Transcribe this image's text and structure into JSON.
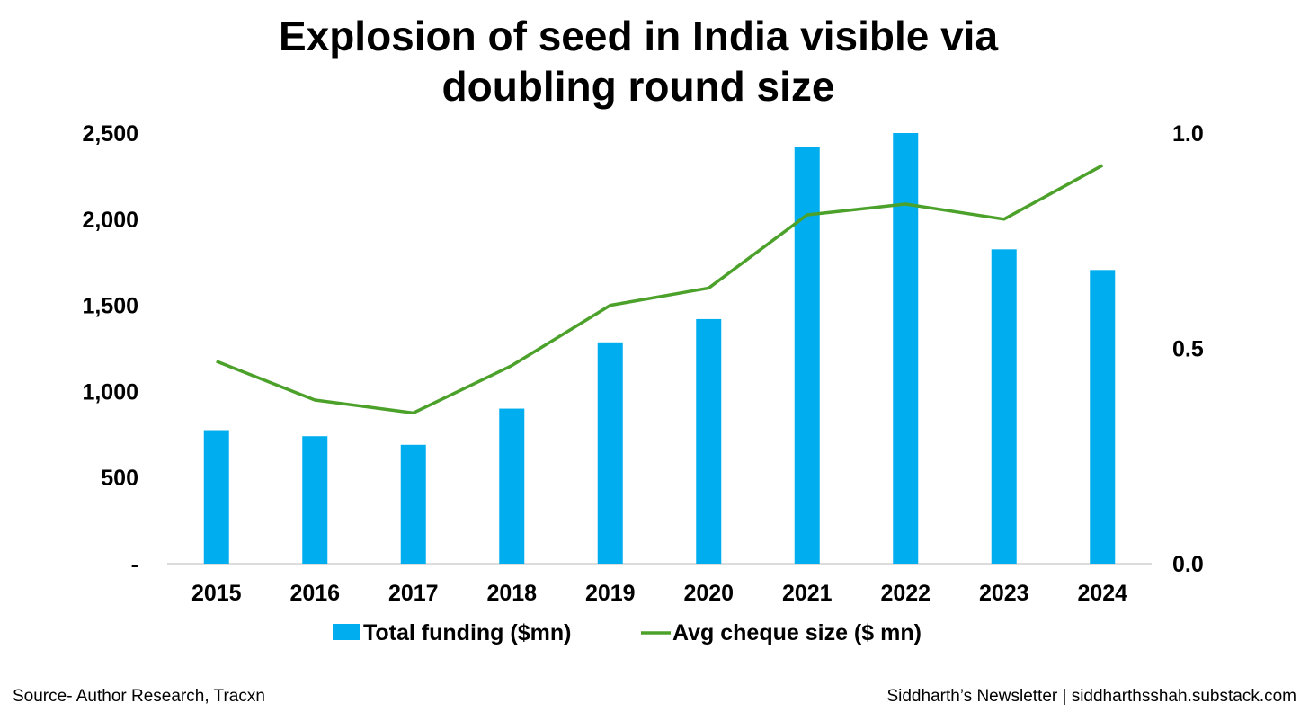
{
  "chart_data": {
    "type": "bar+line",
    "title_lines": [
      "Explosion of seed in India visible via",
      "doubling round size"
    ],
    "categories": [
      "2015",
      "2016",
      "2017",
      "2018",
      "2019",
      "2020",
      "2021",
      "2022",
      "2023",
      "2024"
    ],
    "series": [
      {
        "name": "Total funding ($mn)",
        "type": "bar",
        "axis": "left",
        "color": "#00AEEF",
        "values": [
          775,
          740,
          690,
          900,
          1285,
          1420,
          2420,
          2500,
          1825,
          1705
        ]
      },
      {
        "name": "Avg cheque size ($ mn)",
        "type": "line",
        "axis": "right",
        "color": "#4BA12A",
        "values": [
          0.47,
          0.38,
          0.35,
          0.46,
          0.6,
          0.64,
          0.81,
          0.835,
          0.8,
          0.925
        ]
      }
    ],
    "y_left": {
      "min": 0,
      "max": 2500,
      "ticks": [
        2500,
        2000,
        1500,
        1000,
        500,
        0
      ],
      "tick_labels": [
        "2,500",
        "2,000",
        "1,500",
        "1,000",
        "500",
        "-"
      ]
    },
    "y_right": {
      "min": 0,
      "max": 1.0,
      "ticks": [
        1.0,
        0.5,
        0.0
      ],
      "tick_labels": [
        "1.0",
        "0.5",
        "0.0"
      ]
    },
    "legend_position": "bottom"
  },
  "footer": {
    "source": "Source- Author Research, Tracxn",
    "credit": "Siddharth’s Newsletter | siddharthsshah.substack.com"
  }
}
